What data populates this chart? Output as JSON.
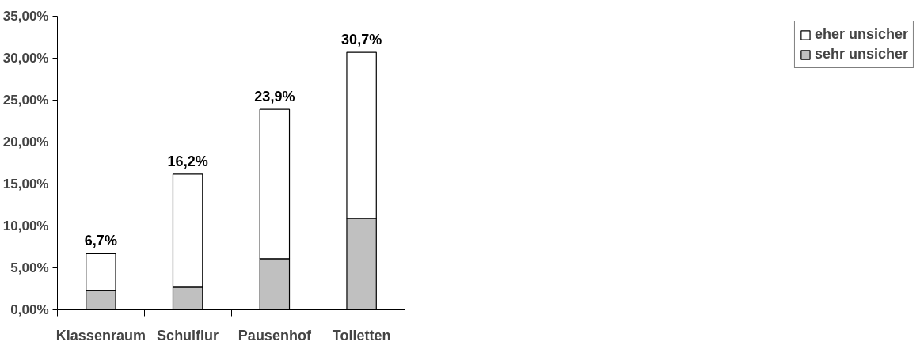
{
  "chart_data": {
    "type": "bar",
    "stacked": true,
    "categories": [
      "Klassenraum",
      "Schulflur",
      "Pausenhof",
      "Toiletten"
    ],
    "series": [
      {
        "name": "sehr unsicher",
        "color": "#c0c0c0",
        "values": [
          2.3,
          2.7,
          6.1,
          10.9
        ]
      },
      {
        "name": "eher unsicher",
        "color": "#ffffff",
        "values": [
          4.4,
          13.5,
          17.8,
          19.8
        ]
      }
    ],
    "totals": [
      "6,7%",
      "16,2%",
      "23,9%",
      "30,7%"
    ],
    "ylim": [
      0,
      35
    ],
    "yticks": [
      {
        "value": 0,
        "label": "0,00%"
      },
      {
        "value": 5,
        "label": "5,00%"
      },
      {
        "value": 10,
        "label": "10,00%"
      },
      {
        "value": 15,
        "label": "15,00%"
      },
      {
        "value": 20,
        "label": "20,00%"
      },
      {
        "value": 25,
        "label": "25,00%"
      },
      {
        "value": 30,
        "label": "30,00%"
      },
      {
        "value": 35,
        "label": "35,00%"
      }
    ],
    "grid": false,
    "legend": "right"
  }
}
